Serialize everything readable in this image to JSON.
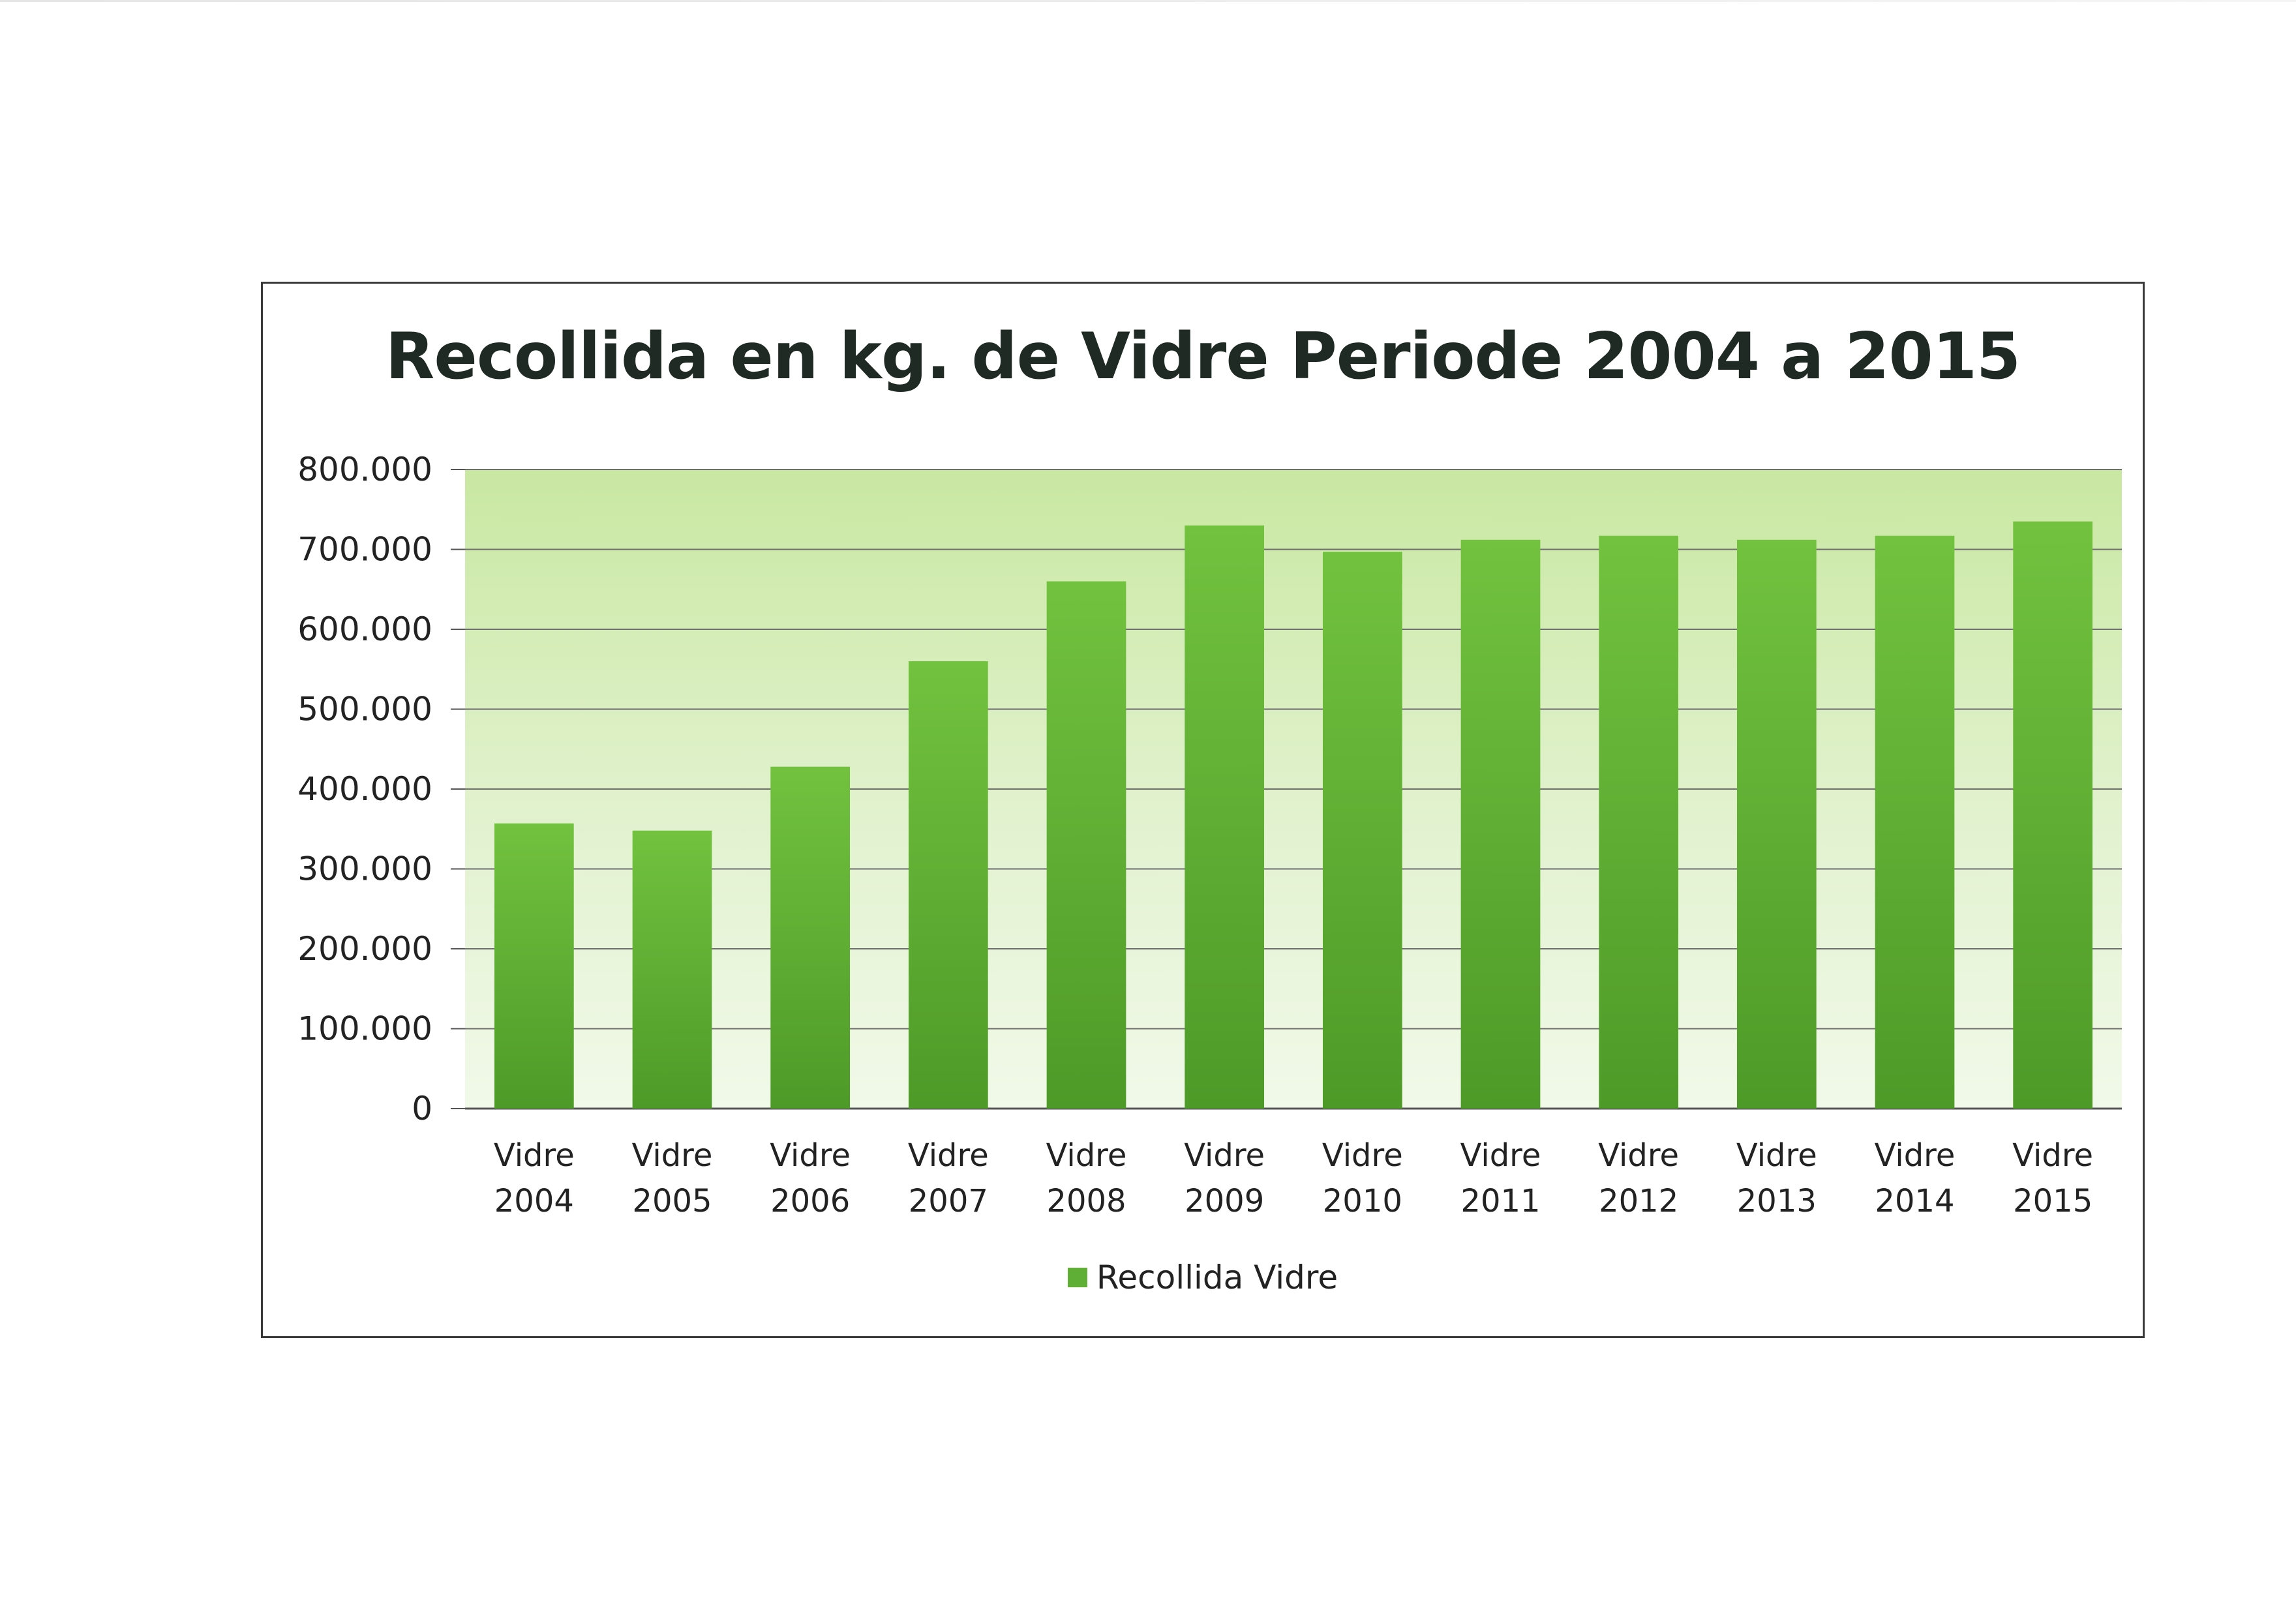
{
  "chart_data": {
    "type": "bar",
    "title": "Recollida en kg. de Vidre Periode 2004 a 2015",
    "categories": [
      [
        "Vidre",
        "2004"
      ],
      [
        "Vidre",
        "2005"
      ],
      [
        "Vidre",
        "2006"
      ],
      [
        "Vidre",
        "2007"
      ],
      [
        "Vidre",
        "2008"
      ],
      [
        "Vidre",
        "2009"
      ],
      [
        "Vidre",
        "2010"
      ],
      [
        "Vidre",
        "2011"
      ],
      [
        "Vidre",
        "2012"
      ],
      [
        "Vidre",
        "2013"
      ],
      [
        "Vidre",
        "2014"
      ],
      [
        "Vidre",
        "2015"
      ]
    ],
    "series": [
      {
        "name": "Recollida Vidre",
        "color": "#5fae35",
        "values": [
          357000,
          348000,
          428000,
          560000,
          660000,
          730000,
          697000,
          712000,
          717000,
          712000,
          717000,
          735000
        ]
      }
    ],
    "ylim": [
      0,
      800000
    ],
    "yticks": [
      0,
      100000,
      200000,
      300000,
      400000,
      500000,
      600000,
      700000,
      800000
    ],
    "ytick_labels": [
      "0",
      "100.000",
      "200.000",
      "300.000",
      "400.000",
      "500.000",
      "600.000",
      "700.000",
      "800.000"
    ],
    "xlabel": "",
    "ylabel": "",
    "grid": true,
    "legend": "bottom-center"
  }
}
